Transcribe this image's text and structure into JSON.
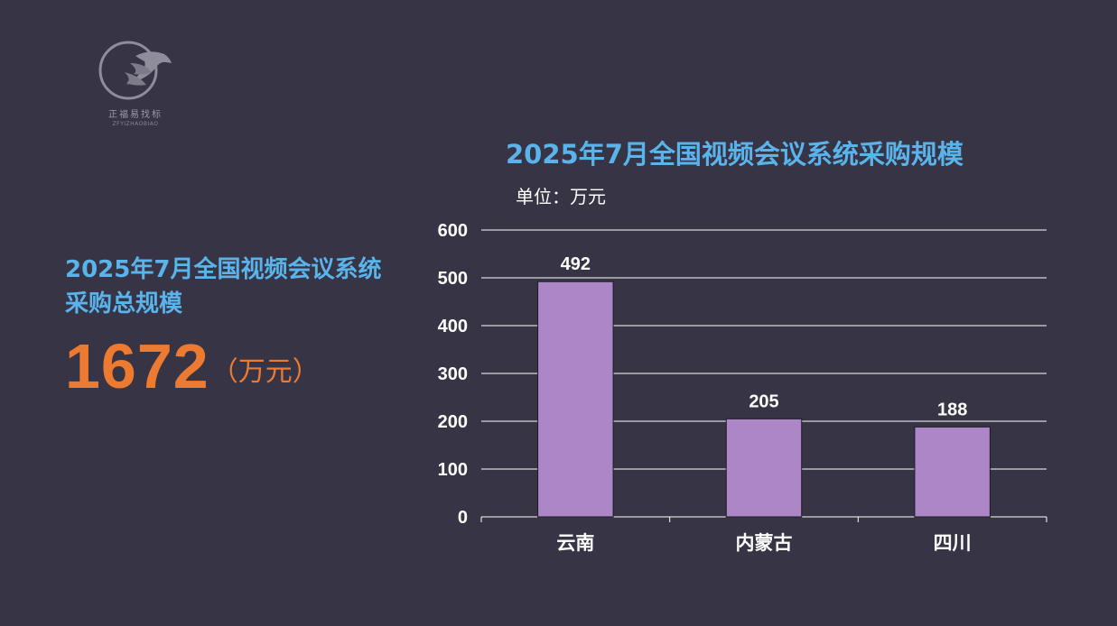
{
  "logo": {
    "name": "正福易找标",
    "sub": "ZFYIZHAOBIAO"
  },
  "summary": {
    "title": "2025年7月全国视频会议系统采购总规模",
    "total_value": "1672",
    "total_unit": "（万元）"
  },
  "colors": {
    "background": "#363445",
    "title_blue": "#5ab4ec",
    "accent_orange": "#ec7a30",
    "bar_fill": "#ac86c6"
  },
  "chart_data": {
    "type": "bar",
    "title": "2025年7月全国视频会议系统采购规模",
    "unit_label": "单位：万元",
    "categories": [
      "云南",
      "内蒙古",
      "四川"
    ],
    "values": [
      492,
      205,
      188
    ],
    "ylim": [
      0,
      600
    ],
    "yticks": [
      0,
      100,
      200,
      300,
      400,
      500,
      600
    ],
    "grid": true,
    "data_labels": true
  }
}
